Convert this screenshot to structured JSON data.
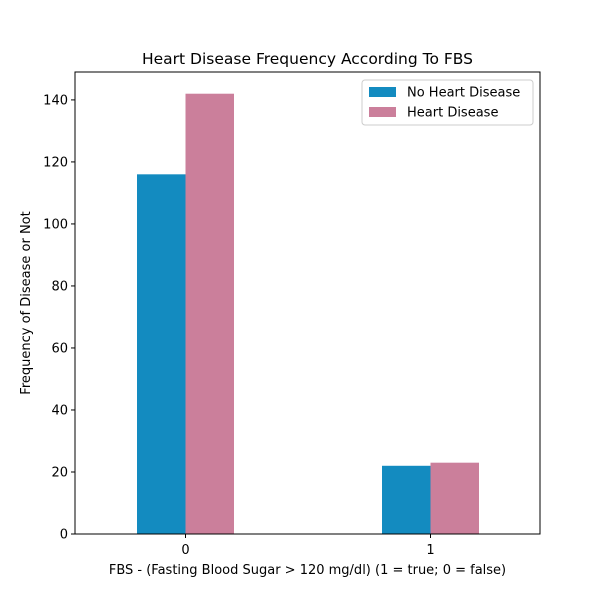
{
  "chart_data": {
    "type": "bar",
    "title": "Heart Disease Frequency According To FBS",
    "xlabel": "FBS - (Fasting Blood Sugar > 120 mg/dl) (1 = true; 0 = false)",
    "ylabel": "Frequency of Disease or Not",
    "categories": [
      "0",
      "1"
    ],
    "series": [
      {
        "name": "No Heart Disease",
        "values": [
          116,
          22
        ],
        "color": "#138bc0"
      },
      {
        "name": "Heart Disease",
        "values": [
          142,
          23
        ],
        "color": "#cb7f9b"
      }
    ],
    "ylim": [
      0,
      149
    ],
    "yticks": [
      0,
      20,
      40,
      60,
      80,
      100,
      120,
      140
    ],
    "grid": false,
    "legend_position": "top-right"
  }
}
